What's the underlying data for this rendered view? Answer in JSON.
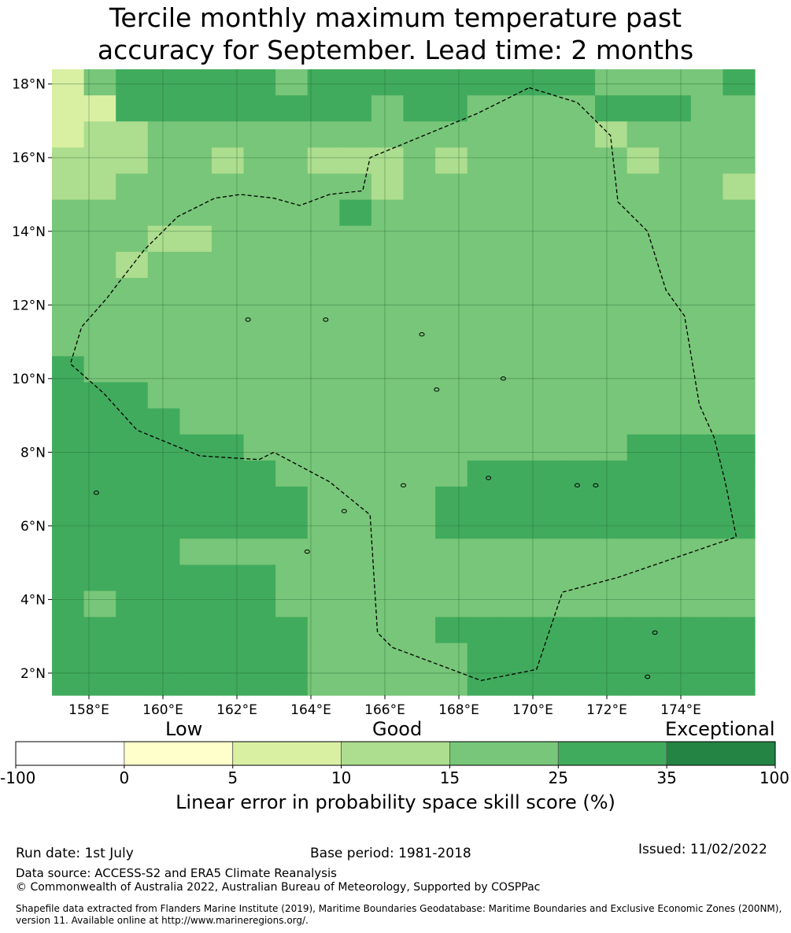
{
  "title_line1": "Tercile monthly maximum temperature past",
  "title_line2": "accuracy for September. Lead time: 2 months",
  "map": {
    "lon_range": [
      157.0,
      176.0
    ],
    "lat_range": [
      1.4,
      18.4
    ],
    "cell_size_deg": 0.8333,
    "x_ticks": [
      "158°E",
      "160°E",
      "162°E",
      "164°E",
      "166°E",
      "168°E",
      "170°E",
      "172°E",
      "174°E"
    ],
    "x_tick_values": [
      158,
      160,
      162,
      164,
      166,
      168,
      170,
      172,
      174
    ],
    "y_ticks": [
      "2°N",
      "4°N",
      "6°N",
      "8°N",
      "10°N",
      "12°N",
      "14°N",
      "16°N",
      "18°N"
    ],
    "y_tick_values": [
      2,
      4,
      6,
      8,
      10,
      12,
      14,
      16,
      18
    ],
    "gridlines": true,
    "eez_boundary": [
      [
        169.9,
        17.9
      ],
      [
        171.2,
        17.5
      ],
      [
        172.1,
        16.6
      ],
      [
        172.3,
        14.8
      ],
      [
        173.1,
        14.0
      ],
      [
        173.6,
        12.4
      ],
      [
        174.1,
        11.7
      ],
      [
        174.5,
        9.3
      ],
      [
        174.9,
        8.4
      ],
      [
        175.2,
        7.2
      ],
      [
        175.5,
        5.7
      ],
      [
        172.3,
        4.6
      ],
      [
        170.8,
        4.2
      ],
      [
        170.1,
        2.1
      ],
      [
        168.6,
        1.8
      ],
      [
        166.2,
        2.7
      ],
      [
        165.8,
        3.1
      ],
      [
        165.6,
        6.3
      ],
      [
        164.5,
        7.2
      ],
      [
        163.0,
        8.0
      ],
      [
        162.6,
        7.8
      ],
      [
        161.0,
        7.9
      ],
      [
        159.3,
        8.6
      ],
      [
        158.4,
        9.6
      ],
      [
        157.5,
        10.4
      ],
      [
        157.8,
        11.4
      ],
      [
        158.5,
        12.2
      ],
      [
        158.8,
        12.6
      ],
      [
        159.5,
        13.5
      ],
      [
        160.4,
        14.4
      ],
      [
        161.4,
        14.9
      ],
      [
        162.1,
        15.0
      ],
      [
        163.0,
        14.9
      ],
      [
        163.7,
        14.7
      ],
      [
        164.5,
        15.0
      ],
      [
        165.4,
        15.1
      ],
      [
        165.6,
        16.0
      ],
      [
        168.5,
        17.2
      ],
      [
        169.9,
        17.9
      ]
    ],
    "grid_values": [
      [
        2,
        4,
        5,
        5,
        5,
        5,
        5,
        4,
        5,
        5,
        5,
        5,
        5,
        5,
        5,
        5,
        5,
        4,
        4,
        4,
        4,
        5
      ],
      [
        2,
        2,
        5,
        5,
        5,
        5,
        5,
        5,
        5,
        5,
        4,
        5,
        5,
        4,
        4,
        4,
        4,
        5,
        5,
        5,
        4,
        4
      ],
      [
        2,
        3,
        3,
        4,
        4,
        4,
        4,
        4,
        4,
        4,
        4,
        4,
        4,
        4,
        4,
        4,
        4,
        3,
        4,
        4,
        4,
        4
      ],
      [
        3,
        3,
        3,
        4,
        4,
        3,
        4,
        4,
        3,
        3,
        3,
        4,
        3,
        4,
        4,
        4,
        4,
        4,
        3,
        4,
        4,
        4
      ],
      [
        3,
        3,
        4,
        4,
        4,
        4,
        4,
        4,
        4,
        4,
        3,
        4,
        4,
        4,
        4,
        4,
        4,
        4,
        4,
        4,
        4,
        3
      ],
      [
        4,
        4,
        4,
        4,
        4,
        4,
        4,
        4,
        4,
        5,
        4,
        4,
        4,
        4,
        4,
        4,
        4,
        4,
        4,
        4,
        4,
        4
      ],
      [
        4,
        4,
        4,
        3,
        3,
        4,
        4,
        4,
        4,
        4,
        4,
        4,
        4,
        4,
        4,
        4,
        4,
        4,
        4,
        4,
        4,
        4
      ],
      [
        4,
        4,
        3,
        4,
        4,
        4,
        4,
        4,
        4,
        4,
        4,
        4,
        4,
        4,
        4,
        4,
        4,
        4,
        4,
        4,
        4,
        4
      ],
      [
        4,
        4,
        4,
        4,
        4,
        4,
        4,
        4,
        4,
        4,
        4,
        4,
        4,
        4,
        4,
        4,
        4,
        4,
        4,
        4,
        4,
        4
      ],
      [
        4,
        4,
        4,
        4,
        4,
        4,
        4,
        4,
        4,
        4,
        4,
        4,
        4,
        4,
        4,
        4,
        4,
        4,
        4,
        4,
        4,
        4
      ],
      [
        4,
        4,
        4,
        4,
        4,
        4,
        4,
        4,
        4,
        4,
        4,
        4,
        4,
        4,
        4,
        4,
        4,
        4,
        4,
        4,
        4,
        4
      ],
      [
        5,
        4,
        4,
        4,
        4,
        4,
        4,
        4,
        4,
        4,
        4,
        4,
        4,
        4,
        4,
        4,
        4,
        4,
        4,
        4,
        4,
        4
      ],
      [
        5,
        5,
        5,
        4,
        4,
        4,
        4,
        4,
        4,
        4,
        4,
        4,
        4,
        4,
        4,
        4,
        4,
        4,
        4,
        4,
        4,
        4
      ],
      [
        5,
        5,
        5,
        5,
        4,
        4,
        4,
        4,
        4,
        4,
        4,
        4,
        4,
        4,
        4,
        4,
        4,
        4,
        4,
        4,
        4,
        4
      ],
      [
        5,
        5,
        5,
        5,
        5,
        5,
        4,
        4,
        4,
        4,
        4,
        4,
        4,
        4,
        4,
        4,
        4,
        4,
        5,
        5,
        5,
        5
      ],
      [
        5,
        5,
        5,
        5,
        5,
        5,
        5,
        4,
        4,
        4,
        4,
        4,
        4,
        5,
        5,
        5,
        5,
        5,
        5,
        5,
        5,
        5
      ],
      [
        5,
        5,
        5,
        5,
        5,
        5,
        5,
        5,
        4,
        4,
        4,
        4,
        5,
        5,
        5,
        5,
        5,
        5,
        5,
        5,
        5,
        5
      ],
      [
        5,
        5,
        5,
        5,
        5,
        5,
        5,
        5,
        4,
        4,
        4,
        4,
        5,
        5,
        5,
        5,
        5,
        5,
        5,
        5,
        5,
        5
      ],
      [
        5,
        5,
        5,
        5,
        4,
        4,
        4,
        4,
        4,
        4,
        4,
        4,
        4,
        4,
        4,
        4,
        4,
        4,
        4,
        4,
        4,
        4
      ],
      [
        5,
        5,
        5,
        5,
        5,
        5,
        5,
        4,
        4,
        4,
        4,
        4,
        4,
        4,
        4,
        4,
        4,
        4,
        4,
        4,
        4,
        4
      ],
      [
        5,
        4,
        5,
        5,
        5,
        5,
        5,
        4,
        4,
        4,
        4,
        4,
        4,
        4,
        4,
        4,
        4,
        4,
        4,
        4,
        4,
        4
      ],
      [
        5,
        5,
        5,
        5,
        5,
        5,
        5,
        5,
        4,
        4,
        4,
        4,
        5,
        5,
        5,
        5,
        5,
        5,
        5,
        5,
        5,
        5
      ],
      [
        5,
        5,
        5,
        5,
        5,
        5,
        5,
        5,
        4,
        4,
        4,
        4,
        4,
        5,
        5,
        5,
        5,
        5,
        5,
        5,
        5,
        5
      ],
      [
        5,
        5,
        5,
        5,
        5,
        5,
        5,
        5,
        4,
        4,
        4,
        4,
        4,
        5,
        5,
        5,
        5,
        5,
        5,
        5,
        5,
        5
      ]
    ]
  },
  "colorbar": {
    "category_labels": [
      "Low",
      "Good",
      "Exceptional"
    ],
    "boundary_labels": [
      "-100",
      "0",
      "5",
      "10",
      "15",
      "25",
      "35",
      "100"
    ],
    "colors": [
      "#ffffff",
      "#ffffcc",
      "#d9f0a3",
      "#addd8e",
      "#78c679",
      "#41ab5d",
      "#238443"
    ],
    "axis_title": "Linear error in probability space skill score (%)"
  },
  "footer": {
    "run_date": "Run date: 1st July",
    "base_period": "Base period: 1981-2018",
    "issued": "Issued: 11/02/2022",
    "data_source": "Data source: ACCESS-S2 and ERA5 Climate Reanalysis",
    "copyright": "© Commonwealth of Australia 2022, Australian Bureau of Meteorology, Supported by COSPPac",
    "shapefile_line1": "Shapefile data extracted from Flanders Marine Institute (2019), Maritime Boundaries Geodatabase: Maritime Boundaries and Exclusive Economic Zones (200NM),",
    "shapefile_line2": "version 11. Available online at http://www.marineregions.org/."
  }
}
